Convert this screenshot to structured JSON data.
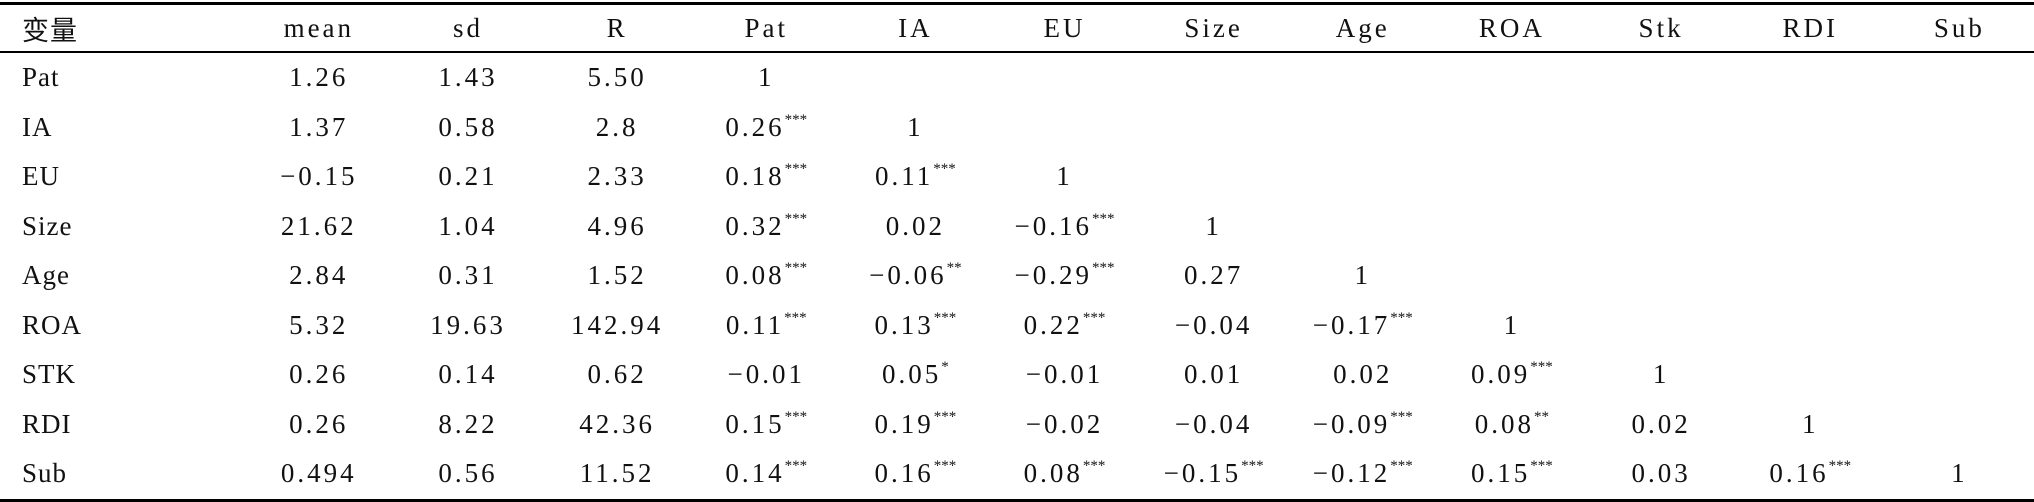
{
  "table": {
    "header": [
      "变量",
      "mean",
      "sd",
      "R",
      "Pat",
      "IA",
      "EU",
      "Size",
      "Age",
      "ROA",
      "Stk",
      "RDI",
      "Sub"
    ],
    "rows": [
      {
        "label": "Pat",
        "cells": [
          "1.26",
          "1.43",
          "5.50",
          "1"
        ]
      },
      {
        "label": "IA",
        "cells": [
          "1.37",
          "0.58",
          "2.8",
          {
            "value": "0.26",
            "sig": "***"
          },
          "1"
        ]
      },
      {
        "label": "EU",
        "cells": [
          "−0.15",
          "0.21",
          "2.33",
          {
            "value": "0.18",
            "sig": "***"
          },
          {
            "value": "0.11",
            "sig": "***"
          },
          "1"
        ]
      },
      {
        "label": "Size",
        "cells": [
          "21.62",
          "1.04",
          "4.96",
          {
            "value": "0.32",
            "sig": "***"
          },
          "0.02",
          {
            "value": "−0.16",
            "sig": "***"
          },
          "1"
        ]
      },
      {
        "label": "Age",
        "cells": [
          "2.84",
          "0.31",
          "1.52",
          {
            "value": "0.08",
            "sig": "***"
          },
          {
            "value": "−0.06",
            "sig": "**"
          },
          {
            "value": "−0.29",
            "sig": "***"
          },
          "0.27",
          "1"
        ]
      },
      {
        "label": "ROA",
        "cells": [
          "5.32",
          "19.63",
          "142.94",
          {
            "value": "0.11",
            "sig": "***"
          },
          {
            "value": "0.13",
            "sig": "***"
          },
          {
            "value": "0.22",
            "sig": "***"
          },
          "−0.04",
          {
            "value": "−0.17",
            "sig": "***"
          },
          "1"
        ]
      },
      {
        "label": "STK",
        "cells": [
          "0.26",
          "0.14",
          "0.62",
          "−0.01",
          {
            "value": "0.05",
            "sig": "*"
          },
          "−0.01",
          "0.01",
          "0.02",
          {
            "value": "0.09",
            "sig": "***"
          },
          "1"
        ]
      },
      {
        "label": "RDI",
        "cells": [
          "0.26",
          "8.22",
          "42.36",
          {
            "value": "0.15",
            "sig": "***"
          },
          {
            "value": "0.19",
            "sig": "***"
          },
          "−0.02",
          "−0.04",
          {
            "value": "−0.09",
            "sig": "***"
          },
          {
            "value": "0.08",
            "sig": "**"
          },
          "0.02",
          "1"
        ]
      },
      {
        "label": "Sub",
        "cells": [
          "0.494",
          "0.56",
          "11.52",
          {
            "value": "0.14",
            "sig": "***"
          },
          {
            "value": "0.16",
            "sig": "***"
          },
          {
            "value": "0.08",
            "sig": "***"
          },
          {
            "value": "−0.15",
            "sig": "***"
          },
          {
            "value": "−0.12",
            "sig": "***"
          },
          {
            "value": "0.15",
            "sig": "***"
          },
          "0.03",
          {
            "value": "0.16",
            "sig": "***"
          },
          "1"
        ]
      }
    ]
  }
}
